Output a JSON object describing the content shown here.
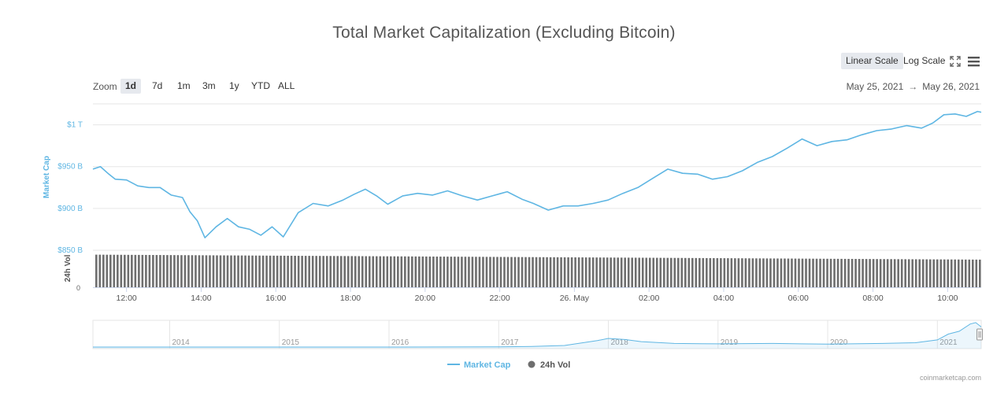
{
  "title": "Total Market Capitalization (Excluding Bitcoin)",
  "scale_buttons": {
    "linear": "Linear Scale",
    "log": "Log Scale",
    "active": "linear"
  },
  "toolbar_icons": [
    "fullscreen-icon",
    "menu-icon"
  ],
  "zoom": {
    "label": "Zoom",
    "options": [
      "1d",
      "7d",
      "1m",
      "3m",
      "1y",
      "YTD",
      "ALL"
    ],
    "active": "1d"
  },
  "range": {
    "from": "May 25, 2021",
    "arrow": "→",
    "to": "May 26, 2021"
  },
  "credits": "coinmarketcap.com",
  "colors": {
    "market_cap": "#5fb6e3",
    "volume": "#6e6e6e",
    "grid": "#e6e6e6",
    "active_button": "#e6e9ee"
  },
  "chart_data": [
    {
      "type": "line",
      "title": "Total Market Capitalization (Excluding Bitcoin)",
      "ylabel": "Market Cap",
      "ylim": [
        850,
        1025
      ],
      "y_ticks": [
        850,
        900,
        950,
        1000
      ],
      "y_tick_labels": [
        "$850 B",
        "$900 B",
        "$950 B",
        "$1 T"
      ],
      "x_ticks": [
        "12:00",
        "14:00",
        "16:00",
        "18:00",
        "20:00",
        "22:00",
        "26. May",
        "02:00",
        "04:00",
        "06:00",
        "08:00",
        "10:00"
      ],
      "x_hours": [
        12,
        14,
        16,
        18,
        20,
        22,
        24,
        26,
        28,
        30,
        32,
        34
      ],
      "xlim_hours": [
        11.1,
        34.9
      ],
      "grid": true,
      "series": [
        {
          "name": "Market Cap",
          "x_hours": [
            11.1,
            11.3,
            11.5,
            11.7,
            12.0,
            12.3,
            12.6,
            12.9,
            13.2,
            13.5,
            13.7,
            13.9,
            14.1,
            14.4,
            14.7,
            15.0,
            15.3,
            15.6,
            15.9,
            16.2,
            16.6,
            17.0,
            17.4,
            17.8,
            18.1,
            18.4,
            18.7,
            19.0,
            19.4,
            19.8,
            20.2,
            20.6,
            21.0,
            21.4,
            21.8,
            22.2,
            22.6,
            22.9,
            23.3,
            23.7,
            24.1,
            24.5,
            24.9,
            25.3,
            25.7,
            26.1,
            26.5,
            26.9,
            27.3,
            27.7,
            28.1,
            28.5,
            28.9,
            29.3,
            29.7,
            30.1,
            30.5,
            30.9,
            31.3,
            31.7,
            32.1,
            32.5,
            32.9,
            33.3,
            33.6,
            33.9,
            34.2,
            34.5,
            34.8,
            34.9
          ],
          "values": [
            947,
            950,
            942,
            935,
            934,
            927,
            925,
            925,
            916,
            913,
            896,
            885,
            865,
            878,
            888,
            878,
            875,
            868,
            878,
            866,
            895,
            906,
            903,
            910,
            917,
            923,
            915,
            905,
            915,
            918,
            916,
            921,
            915,
            910,
            915,
            920,
            911,
            906,
            898,
            903,
            903,
            906,
            910,
            918,
            925,
            936,
            947,
            942,
            941,
            935,
            938,
            945,
            955,
            962,
            972,
            983,
            975,
            980,
            982,
            988,
            993,
            995,
            999,
            996,
            1002,
            1012,
            1013,
            1010,
            1016,
            1015
          ]
        },
        {
          "name": "24h Vol",
          "type": "bar",
          "note_values": "relative volume level",
          "start_level": 0.92,
          "end_level": 0.78
        }
      ]
    },
    {
      "type": "area",
      "role": "navigator",
      "x_tick_labels": [
        "2014",
        "2015",
        "2016",
        "2017",
        "2018",
        "2019",
        "2020",
        "2021"
      ],
      "x_years": [
        2014,
        2015,
        2016,
        2017,
        2018,
        2019,
        2020,
        2021
      ],
      "xlim_years": [
        2013.3,
        2021.4
      ],
      "series": [
        {
          "name": "Market Cap",
          "x_years": [
            2013.3,
            2014.0,
            2015.0,
            2016.0,
            2017.0,
            2017.3,
            2017.6,
            2017.9,
            2018.0,
            2018.15,
            2018.3,
            2018.6,
            2019.0,
            2019.5,
            2020.0,
            2020.5,
            2020.8,
            2021.0,
            2021.1,
            2021.2,
            2021.3,
            2021.35,
            2021.4
          ],
          "values": [
            0,
            0,
            0,
            0,
            0.2,
            0.8,
            2.2,
            9.0,
            12.0,
            10.5,
            7.5,
            5.0,
            4.5,
            5.0,
            4.0,
            5.0,
            6.0,
            10.0,
            18.0,
            22.0,
            32.0,
            34.0,
            28.0
          ]
        }
      ]
    }
  ],
  "legend": {
    "market_cap": "Market Cap",
    "volume": "24h Vol",
    "placement": "bottom-center"
  },
  "volume_axis": {
    "label": "24h Vol",
    "zero_label": "0"
  }
}
